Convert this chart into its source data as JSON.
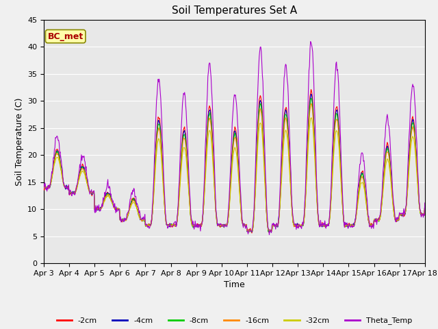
{
  "title": "Soil Temperatures Set A",
  "xlabel": "Time",
  "ylabel": "Soil Temperature (C)",
  "ylim": [
    0,
    45
  ],
  "annotation": "BC_met",
  "legend_entries": [
    "-2cm",
    "-4cm",
    "-8cm",
    "-16cm",
    "-32cm",
    "Theta_Temp"
  ],
  "line_colors": [
    "#ff0000",
    "#0000bb",
    "#00cc00",
    "#ff8800",
    "#cccc00",
    "#aa00cc"
  ],
  "title_fontsize": 11,
  "label_fontsize": 9,
  "tick_fontsize": 8,
  "fig_facecolor": "#f0f0f0",
  "ax_facecolor": "#e8e8e8"
}
